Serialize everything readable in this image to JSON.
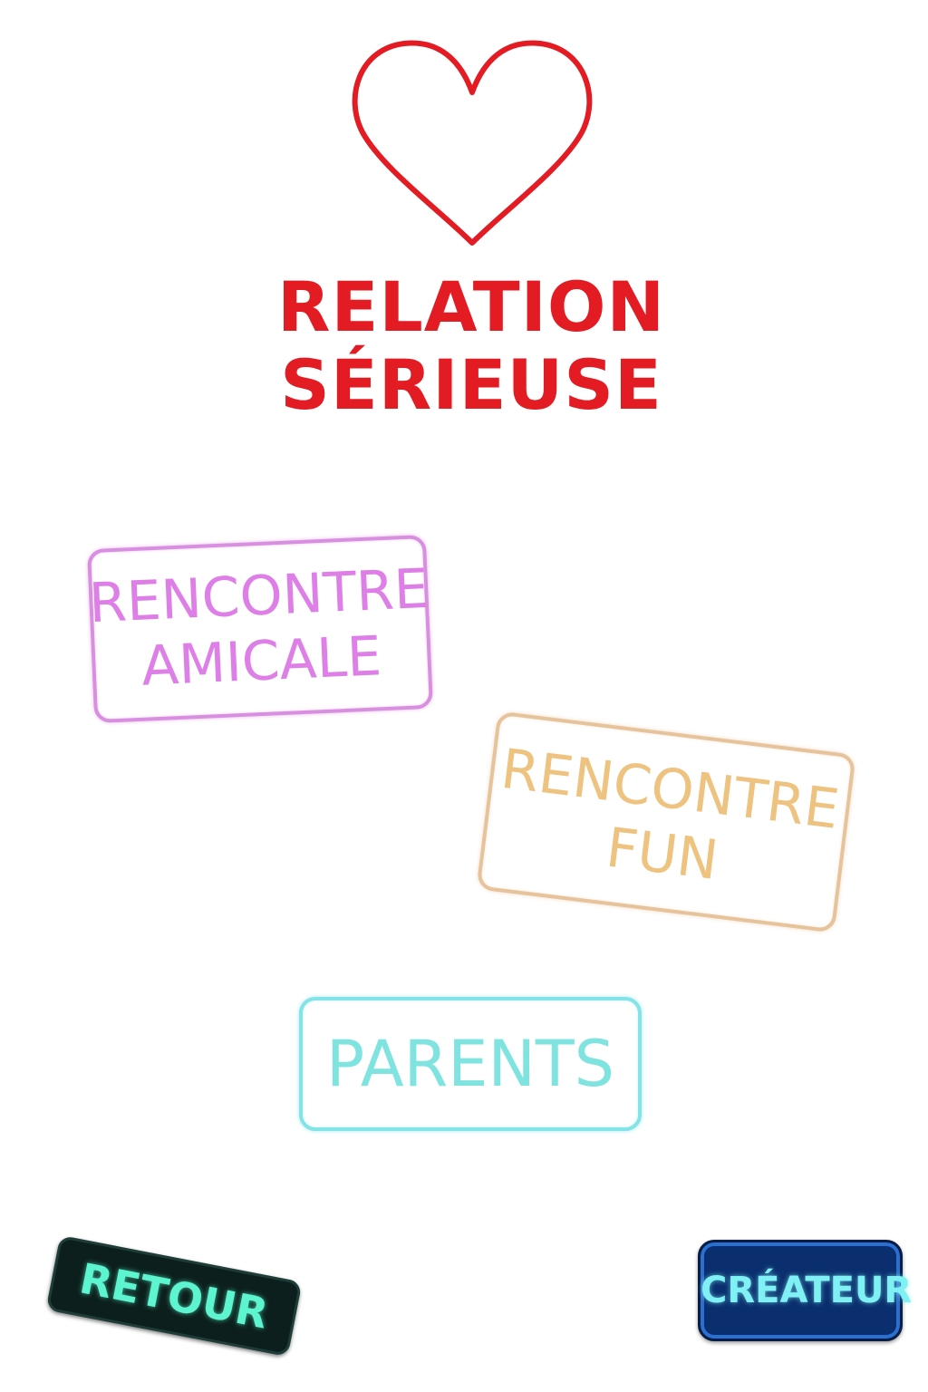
{
  "header": {
    "icon": "heart-outline-icon",
    "title_line1": "RELATION",
    "title_line2": "SÉRIEUSE"
  },
  "options": {
    "amicale": {
      "line1": "RENCONTRE",
      "line2": "AMICALE"
    },
    "fun": {
      "line1": "RENCONTRE",
      "line2": "FUN"
    },
    "parents": {
      "label": "PARENTS"
    }
  },
  "footer": {
    "back_label": "RETOUR",
    "creator_label": "CRÉATEUR"
  },
  "colors": {
    "title": "#e31b23",
    "amicale": "#dd7fe6",
    "fun": "#eec27f",
    "parents": "#7fe3e0",
    "back_bg": "#0c1f1c",
    "back_text": "#5df5cf",
    "creator_bg": "#0b2f6e",
    "creator_text": "#7ff0f3"
  }
}
